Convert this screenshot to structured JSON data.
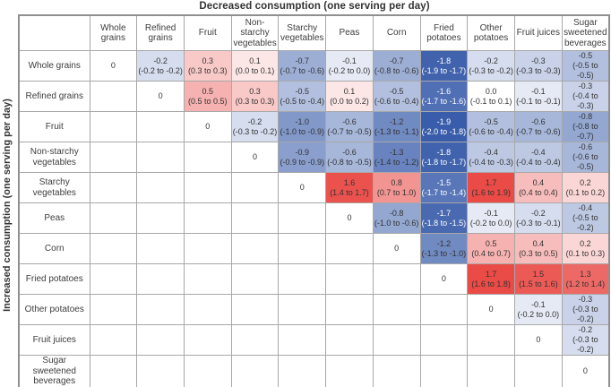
{
  "title": "Decreased consumption (one serving per day)",
  "y_axis_label": "Increased consumption (one serving per day)",
  "chart_data": {
    "type": "heatmap",
    "description": "Matrix of estimated effects (with 95% CI) of substituting one food for another, one serving per day",
    "columns": [
      "Whole grains",
      "Refined grains",
      "Fruit",
      "Non-starchy vegetables",
      "Starchy vegetables",
      "Peas",
      "Corn",
      "Fried potatoes",
      "Other potatoes",
      "Fruit juices",
      "Sugar sweetened beverages"
    ],
    "rows": [
      "Whole grains",
      "Refined grains",
      "Fruit",
      "Non-starchy vegetables",
      "Starchy vegetables",
      "Peas",
      "Corn",
      "Fried potatoes",
      "Other potatoes",
      "Fruit juices",
      "Sugar sweetened beverages"
    ],
    "color_scale": {
      "negative_max": "#3a5dab",
      "positive_max": "#e83c37",
      "neutral": "#ffffff",
      "domain_abs_max": 1.9
    },
    "cells": [
      [
        {
          "value": "0",
          "ci": "",
          "v": 0
        },
        {
          "value": "-0.2",
          "ci": "(-0.2 to -0.2)",
          "v": -0.2
        },
        {
          "value": "0.3",
          "ci": "(0.3 to 0.3)",
          "v": 0.3
        },
        {
          "value": "0.1",
          "ci": "(0.0 to 0.1)",
          "v": 0.1
        },
        {
          "value": "-0.7",
          "ci": "(-0.7 to -0.6)",
          "v": -0.7
        },
        {
          "value": "-0.1",
          "ci": "(-0.2 to 0.0)",
          "v": -0.1
        },
        {
          "value": "-0.7",
          "ci": "(-0.8 to -0.6)",
          "v": -0.7
        },
        {
          "value": "-1.8",
          "ci": "(-1.9 to -1.7)",
          "v": -1.8
        },
        {
          "value": "-0.2",
          "ci": "(-0.3 to -0.2)",
          "v": -0.2
        },
        {
          "value": "-0.3",
          "ci": "(-0.3 to -0.3)",
          "v": -0.3
        },
        {
          "value": "-0.5",
          "ci": "(-0.5 to -0.5)",
          "v": -0.5
        }
      ],
      [
        null,
        {
          "value": "0",
          "ci": "",
          "v": 0
        },
        {
          "value": "0.5",
          "ci": "(0.5 to 0.5)",
          "v": 0.5
        },
        {
          "value": "0.3",
          "ci": "(0.3 to 0.3)",
          "v": 0.3
        },
        {
          "value": "-0.5",
          "ci": "(-0.5 to -0.4)",
          "v": -0.5
        },
        {
          "value": "0.1",
          "ci": "(0.0 to 0.2)",
          "v": 0.1
        },
        {
          "value": "-0.5",
          "ci": "(-0.6 to -0.4)",
          "v": -0.5
        },
        {
          "value": "-1.6",
          "ci": "(-1.7 to -1.6)",
          "v": -1.6
        },
        {
          "value": "0.0",
          "ci": "(-0.1 to 0.1)",
          "v": 0
        },
        {
          "value": "-0.1",
          "ci": "(-0.1 to -0.1)",
          "v": -0.1
        },
        {
          "value": "-0.3",
          "ci": "(-0.4 to -0.3)",
          "v": -0.3
        }
      ],
      [
        null,
        null,
        {
          "value": "0",
          "ci": "",
          "v": 0
        },
        {
          "value": "-0.2",
          "ci": "(-0.3 to -0.2)",
          "v": -0.2
        },
        {
          "value": "-1.0",
          "ci": "(-1.0 to -0.9)",
          "v": -1.0
        },
        {
          "value": "-0.6",
          "ci": "(-0.7 to -0.5)",
          "v": -0.6
        },
        {
          "value": "-1.2",
          "ci": "(-1.3 to -1.1)",
          "v": -1.2
        },
        {
          "value": "-1.9",
          "ci": "(-2.0 to -1.8)",
          "v": -1.9
        },
        {
          "value": "-0.5",
          "ci": "(-0.6 to -0.4)",
          "v": -0.5
        },
        {
          "value": "-0.6",
          "ci": "(-0.7 to -0.6)",
          "v": -0.6
        },
        {
          "value": "-0.8",
          "ci": "(-0.8 to -0.7)",
          "v": -0.8
        }
      ],
      [
        null,
        null,
        null,
        {
          "value": "0",
          "ci": "",
          "v": 0
        },
        {
          "value": "-0.9",
          "ci": "(-0.9 to -0.9)",
          "v": -0.9
        },
        {
          "value": "-0.6",
          "ci": "(-0.8 to -0.5)",
          "v": -0.6
        },
        {
          "value": "-1.3",
          "ci": "(-1.4 to -1.2)",
          "v": -1.3
        },
        {
          "value": "-1.8",
          "ci": "(-1.8 to -1.7)",
          "v": -1.8
        },
        {
          "value": "-0.4",
          "ci": "(-0.4 to -0.3)",
          "v": -0.4
        },
        {
          "value": "-0.4",
          "ci": "(-0.4 to -0.4)",
          "v": -0.4
        },
        {
          "value": "-0.6",
          "ci": "(-0.6 to -0.5)",
          "v": -0.6
        }
      ],
      [
        null,
        null,
        null,
        null,
        {
          "value": "0",
          "ci": "",
          "v": 0
        },
        {
          "value": "1.6",
          "ci": "(1.4 to 1.7)",
          "v": 1.6
        },
        {
          "value": "0.8",
          "ci": "(0.7 to 1.0)",
          "v": 0.8
        },
        {
          "value": "-1.5",
          "ci": "(-1.7 to -1.4)",
          "v": -1.5
        },
        {
          "value": "1.7",
          "ci": "(1.6 to 1.9)",
          "v": 1.7
        },
        {
          "value": "0.4",
          "ci": "(0.4 to 0.4)",
          "v": 0.4
        },
        {
          "value": "0.2",
          "ci": "(0.1 to 0.2)",
          "v": 0.2
        }
      ],
      [
        null,
        null,
        null,
        null,
        null,
        {
          "value": "0",
          "ci": "",
          "v": 0
        },
        {
          "value": "-0.8",
          "ci": "(-1.0 to -0.6)",
          "v": -0.8
        },
        {
          "value": "-1.7",
          "ci": "(-1.8 to -1.5)",
          "v": -1.7
        },
        {
          "value": "-0.1",
          "ci": "(-0.2 to 0.0)",
          "v": -0.1
        },
        {
          "value": "-0.2",
          "ci": "(-0.3 to -0.1)",
          "v": -0.2
        },
        {
          "value": "-0.4",
          "ci": "(-0.5 to -0.2)",
          "v": -0.4
        }
      ],
      [
        null,
        null,
        null,
        null,
        null,
        null,
        {
          "value": "0",
          "ci": "",
          "v": 0
        },
        {
          "value": "-1.2",
          "ci": "(-1.3 to -1.0)",
          "v": -1.2
        },
        {
          "value": "0.5",
          "ci": "(0.4 to 0.7)",
          "v": 0.5
        },
        {
          "value": "0.4",
          "ci": "(0.3 to 0.5)",
          "v": 0.4
        },
        {
          "value": "0.2",
          "ci": "(0.1 to 0.3)",
          "v": 0.2
        }
      ],
      [
        null,
        null,
        null,
        null,
        null,
        null,
        null,
        {
          "value": "0",
          "ci": "",
          "v": 0
        },
        {
          "value": "1.7",
          "ci": "(1.6 to 1.8)",
          "v": 1.7
        },
        {
          "value": "1.5",
          "ci": "(1.5 to 1.6)",
          "v": 1.5
        },
        {
          "value": "1.3",
          "ci": "(1.2 to 1.4)",
          "v": 1.3
        }
      ],
      [
        null,
        null,
        null,
        null,
        null,
        null,
        null,
        null,
        {
          "value": "0",
          "ci": "",
          "v": 0
        },
        {
          "value": "-0.1",
          "ci": "(-0.2 to 0.0)",
          "v": -0.1
        },
        {
          "value": "-0.3",
          "ci": "(-0.3 to -0.2)",
          "v": -0.3
        }
      ],
      [
        null,
        null,
        null,
        null,
        null,
        null,
        null,
        null,
        null,
        {
          "value": "0",
          "ci": "",
          "v": 0
        },
        {
          "value": "-0.2",
          "ci": "(-0.3 to -0.2)",
          "v": -0.2
        }
      ],
      [
        null,
        null,
        null,
        null,
        null,
        null,
        null,
        null,
        null,
        null,
        {
          "value": "0",
          "ci": "",
          "v": 0
        }
      ]
    ]
  }
}
